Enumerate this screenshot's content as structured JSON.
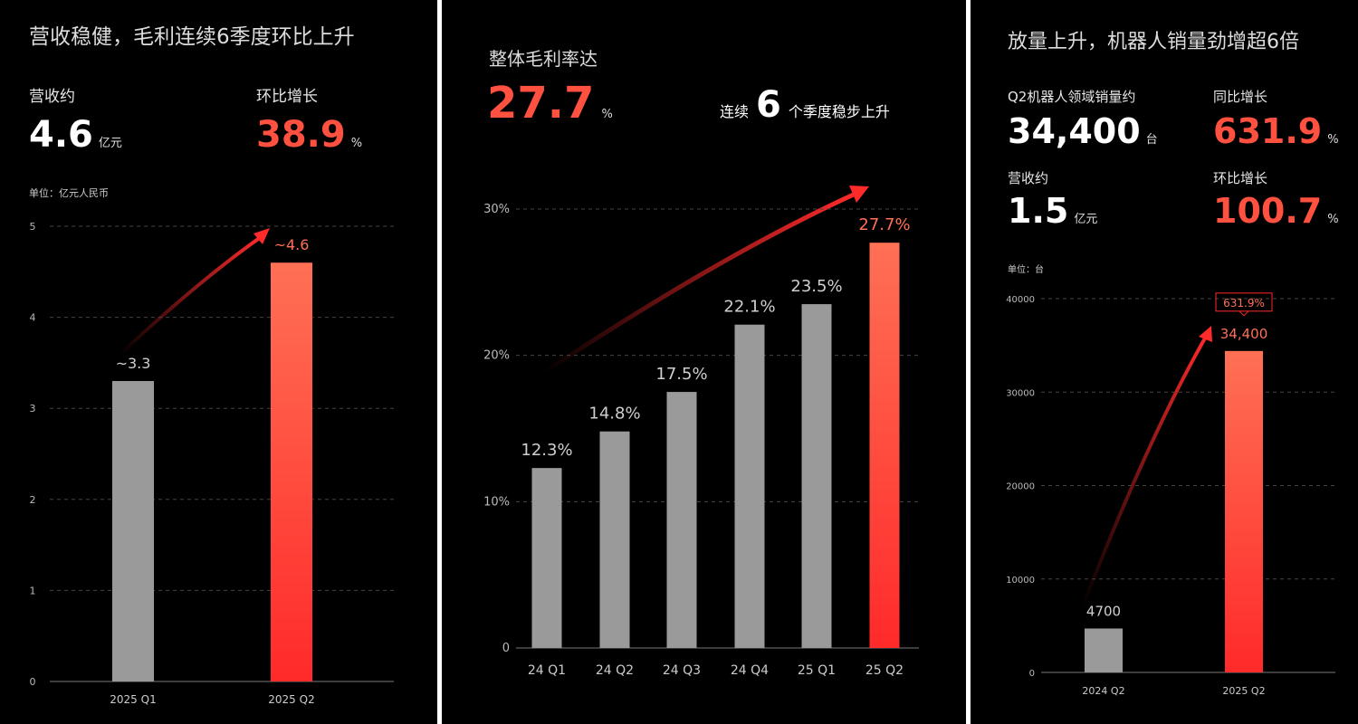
{
  "chart_data": [
    {
      "type": "bar",
      "title": "营收稳健，毛利连续6季度环比上升",
      "stats": [
        {
          "label": "营收约",
          "value": 4.6,
          "unit": "亿元"
        },
        {
          "label": "环比增长",
          "value": 38.9,
          "unit": "%"
        }
      ],
      "unit_note": "单位：亿元人民币",
      "categories": [
        "2025 Q1",
        "2025 Q2"
      ],
      "values": [
        3.3,
        4.6
      ],
      "value_labels": [
        "~3.3",
        "~4.6"
      ],
      "colors": [
        "#9a9a9a",
        {
          "top": "#ff7055",
          "bottom": "#ff2a2a"
        }
      ],
      "ylim": [
        0,
        5
      ],
      "yticks": [
        0,
        1,
        2,
        3,
        4,
        5
      ],
      "grid": true
    },
    {
      "type": "bar",
      "title": "整体毛利率达",
      "stats": [
        {
          "value": 27.7,
          "unit": "%"
        }
      ],
      "streak": {
        "prefix": "连续",
        "count": 6,
        "suffix": "个季度稳步上升"
      },
      "categories": [
        "24 Q1",
        "24 Q2",
        "24 Q3",
        "24 Q4",
        "25 Q1",
        "25 Q2"
      ],
      "values": [
        12.3,
        14.8,
        17.5,
        22.1,
        23.5,
        27.7
      ],
      "value_labels": [
        "12.3%",
        "14.8%",
        "17.5%",
        "22.1%",
        "23.5%",
        "27.7%"
      ],
      "colors": [
        "#9a9a9a",
        "#9a9a9a",
        "#9a9a9a",
        "#9a9a9a",
        "#9a9a9a",
        {
          "top": "#ff7055",
          "bottom": "#ff2a2a"
        }
      ],
      "ylim": [
        0,
        30
      ],
      "yticks": [
        0,
        {
          "value": 10,
          "label": "10%"
        },
        {
          "value": 20,
          "label": "20%"
        },
        {
          "value": 30,
          "label": "30%"
        }
      ],
      "grid": true
    },
    {
      "type": "bar",
      "title": "放量上升，机器人销量劲增超6倍",
      "stats": [
        {
          "label": "Q2机器人领域销量约",
          "value": "34,400",
          "unit": "台"
        },
        {
          "label": "同比增长",
          "value": 631.9,
          "unit": "%"
        },
        {
          "label": "营收约",
          "value": 1.5,
          "unit": "亿元"
        },
        {
          "label": "环比增长",
          "value": 100.7,
          "unit": "%"
        }
      ],
      "unit_note": "单位：台",
      "categories": [
        "2024 Q2",
        "2025 Q2"
      ],
      "values": [
        4700,
        34400
      ],
      "value_labels": [
        "4700",
        "34,400"
      ],
      "annotation": "631.9%",
      "colors": [
        "#9a9a9a",
        {
          "top": "#ff7055",
          "bottom": "#ff2a2a"
        }
      ],
      "ylim": [
        0,
        40000
      ],
      "yticks": [
        0,
        10000,
        20000,
        30000,
        40000
      ],
      "grid": true
    }
  ]
}
